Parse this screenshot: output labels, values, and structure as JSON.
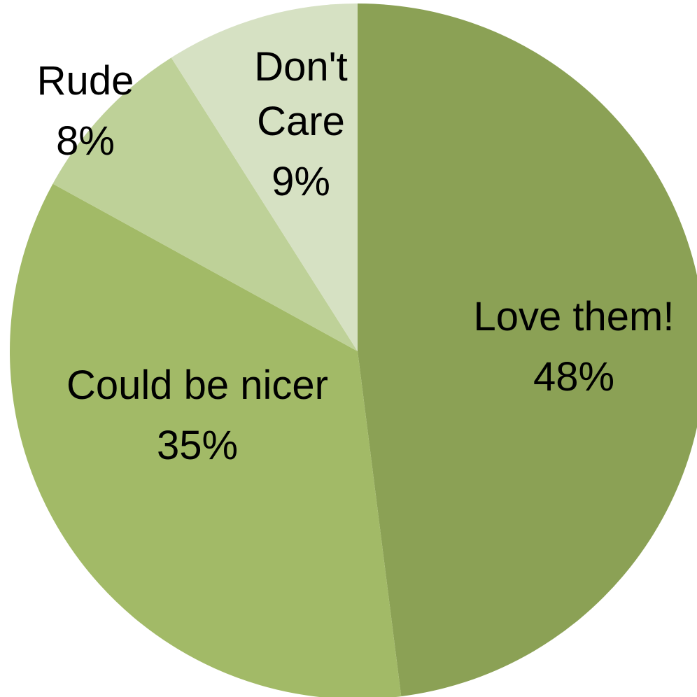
{
  "chart_data": {
    "type": "pie",
    "title": "",
    "start_angle_deg": 0,
    "direction": "clockwise",
    "slices": [
      {
        "label": "Love them!",
        "value": 48,
        "percent_label": "48%",
        "color": "#8ba155"
      },
      {
        "label": "Could be nicer",
        "value": 35,
        "percent_label": "35%",
        "color": "#a2ba67"
      },
      {
        "label": "Rude",
        "value": 8,
        "percent_label": "8%",
        "color": "#bed198"
      },
      {
        "label": "Don't Care",
        "value": 9,
        "percent_label": "9%",
        "color": "#d6e1c3"
      }
    ]
  }
}
